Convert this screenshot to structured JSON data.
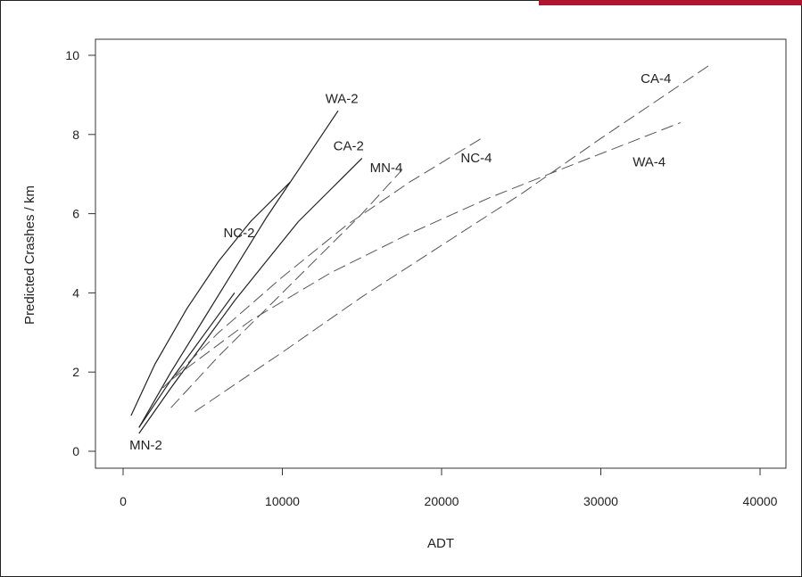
{
  "chart_data": {
    "type": "line",
    "title": "",
    "xlabel": "ADT",
    "ylabel": "Predicted Crashes / km",
    "xlim": [
      -1000,
      41000
    ],
    "ylim": [
      -0.3,
      10.4
    ],
    "x_ticks": [
      0,
      10000,
      20000,
      30000,
      40000
    ],
    "y_ticks": [
      0,
      2,
      4,
      6,
      8,
      10
    ],
    "grid": false,
    "series": [
      {
        "name": "WA-2",
        "style": "solid",
        "x": [
          1000,
          3000,
          5000,
          7000,
          9000,
          11000,
          13500
        ],
        "y": [
          0.6,
          2.0,
          3.3,
          4.6,
          5.9,
          7.1,
          8.6
        ],
        "label_at": [
          12700,
          8.8
        ]
      },
      {
        "name": "NC-2",
        "style": "solid",
        "x": [
          500,
          2000,
          4000,
          6000,
          8000,
          10500
        ],
        "y": [
          0.9,
          2.2,
          3.6,
          4.8,
          5.8,
          6.8
        ],
        "label_at": [
          6300,
          5.4
        ]
      },
      {
        "name": "CA-2",
        "style": "solid",
        "x": [
          1000,
          3000,
          5000,
          7000,
          9000,
          11000,
          13000,
          15000
        ],
        "y": [
          0.45,
          1.6,
          2.7,
          3.8,
          4.8,
          5.8,
          6.6,
          7.4
        ],
        "label_at": [
          13200,
          7.6
        ]
      },
      {
        "name": "MN-2",
        "style": "solid",
        "x": [
          1000,
          3000,
          5000,
          7000
        ],
        "y": [
          0.6,
          1.8,
          2.9,
          4.0
        ],
        "label_at": [
          400,
          0.05
        ]
      },
      {
        "name": "MN-4",
        "style": "dashed",
        "x": [
          3000,
          6000,
          9000,
          12000,
          15000,
          17500
        ],
        "y": [
          1.1,
          2.4,
          3.6,
          4.8,
          6.0,
          7.1
        ],
        "label_at": [
          15500,
          7.05
        ]
      },
      {
        "name": "NC-4",
        "style": "dashed",
        "x": [
          2500,
          6000,
          10000,
          14000,
          18000,
          22500
        ],
        "y": [
          1.6,
          3.0,
          4.4,
          5.7,
          6.8,
          7.9
        ],
        "label_at": [
          21200,
          7.3
        ]
      },
      {
        "name": "CA-4",
        "style": "dashed",
        "x": [
          4500,
          10000,
          15000,
          20000,
          25000,
          30000,
          37000
        ],
        "y": [
          1.0,
          2.5,
          3.9,
          5.2,
          6.5,
          7.9,
          9.8
        ],
        "label_at": [
          32500,
          9.3
        ]
      },
      {
        "name": "WA-4",
        "style": "dashed",
        "x": [
          3000,
          8000,
          13000,
          18000,
          23000,
          28000,
          35000
        ],
        "y": [
          1.8,
          3.3,
          4.5,
          5.5,
          6.4,
          7.2,
          8.3
        ],
        "label_at": [
          32000,
          7.2
        ]
      }
    ]
  }
}
